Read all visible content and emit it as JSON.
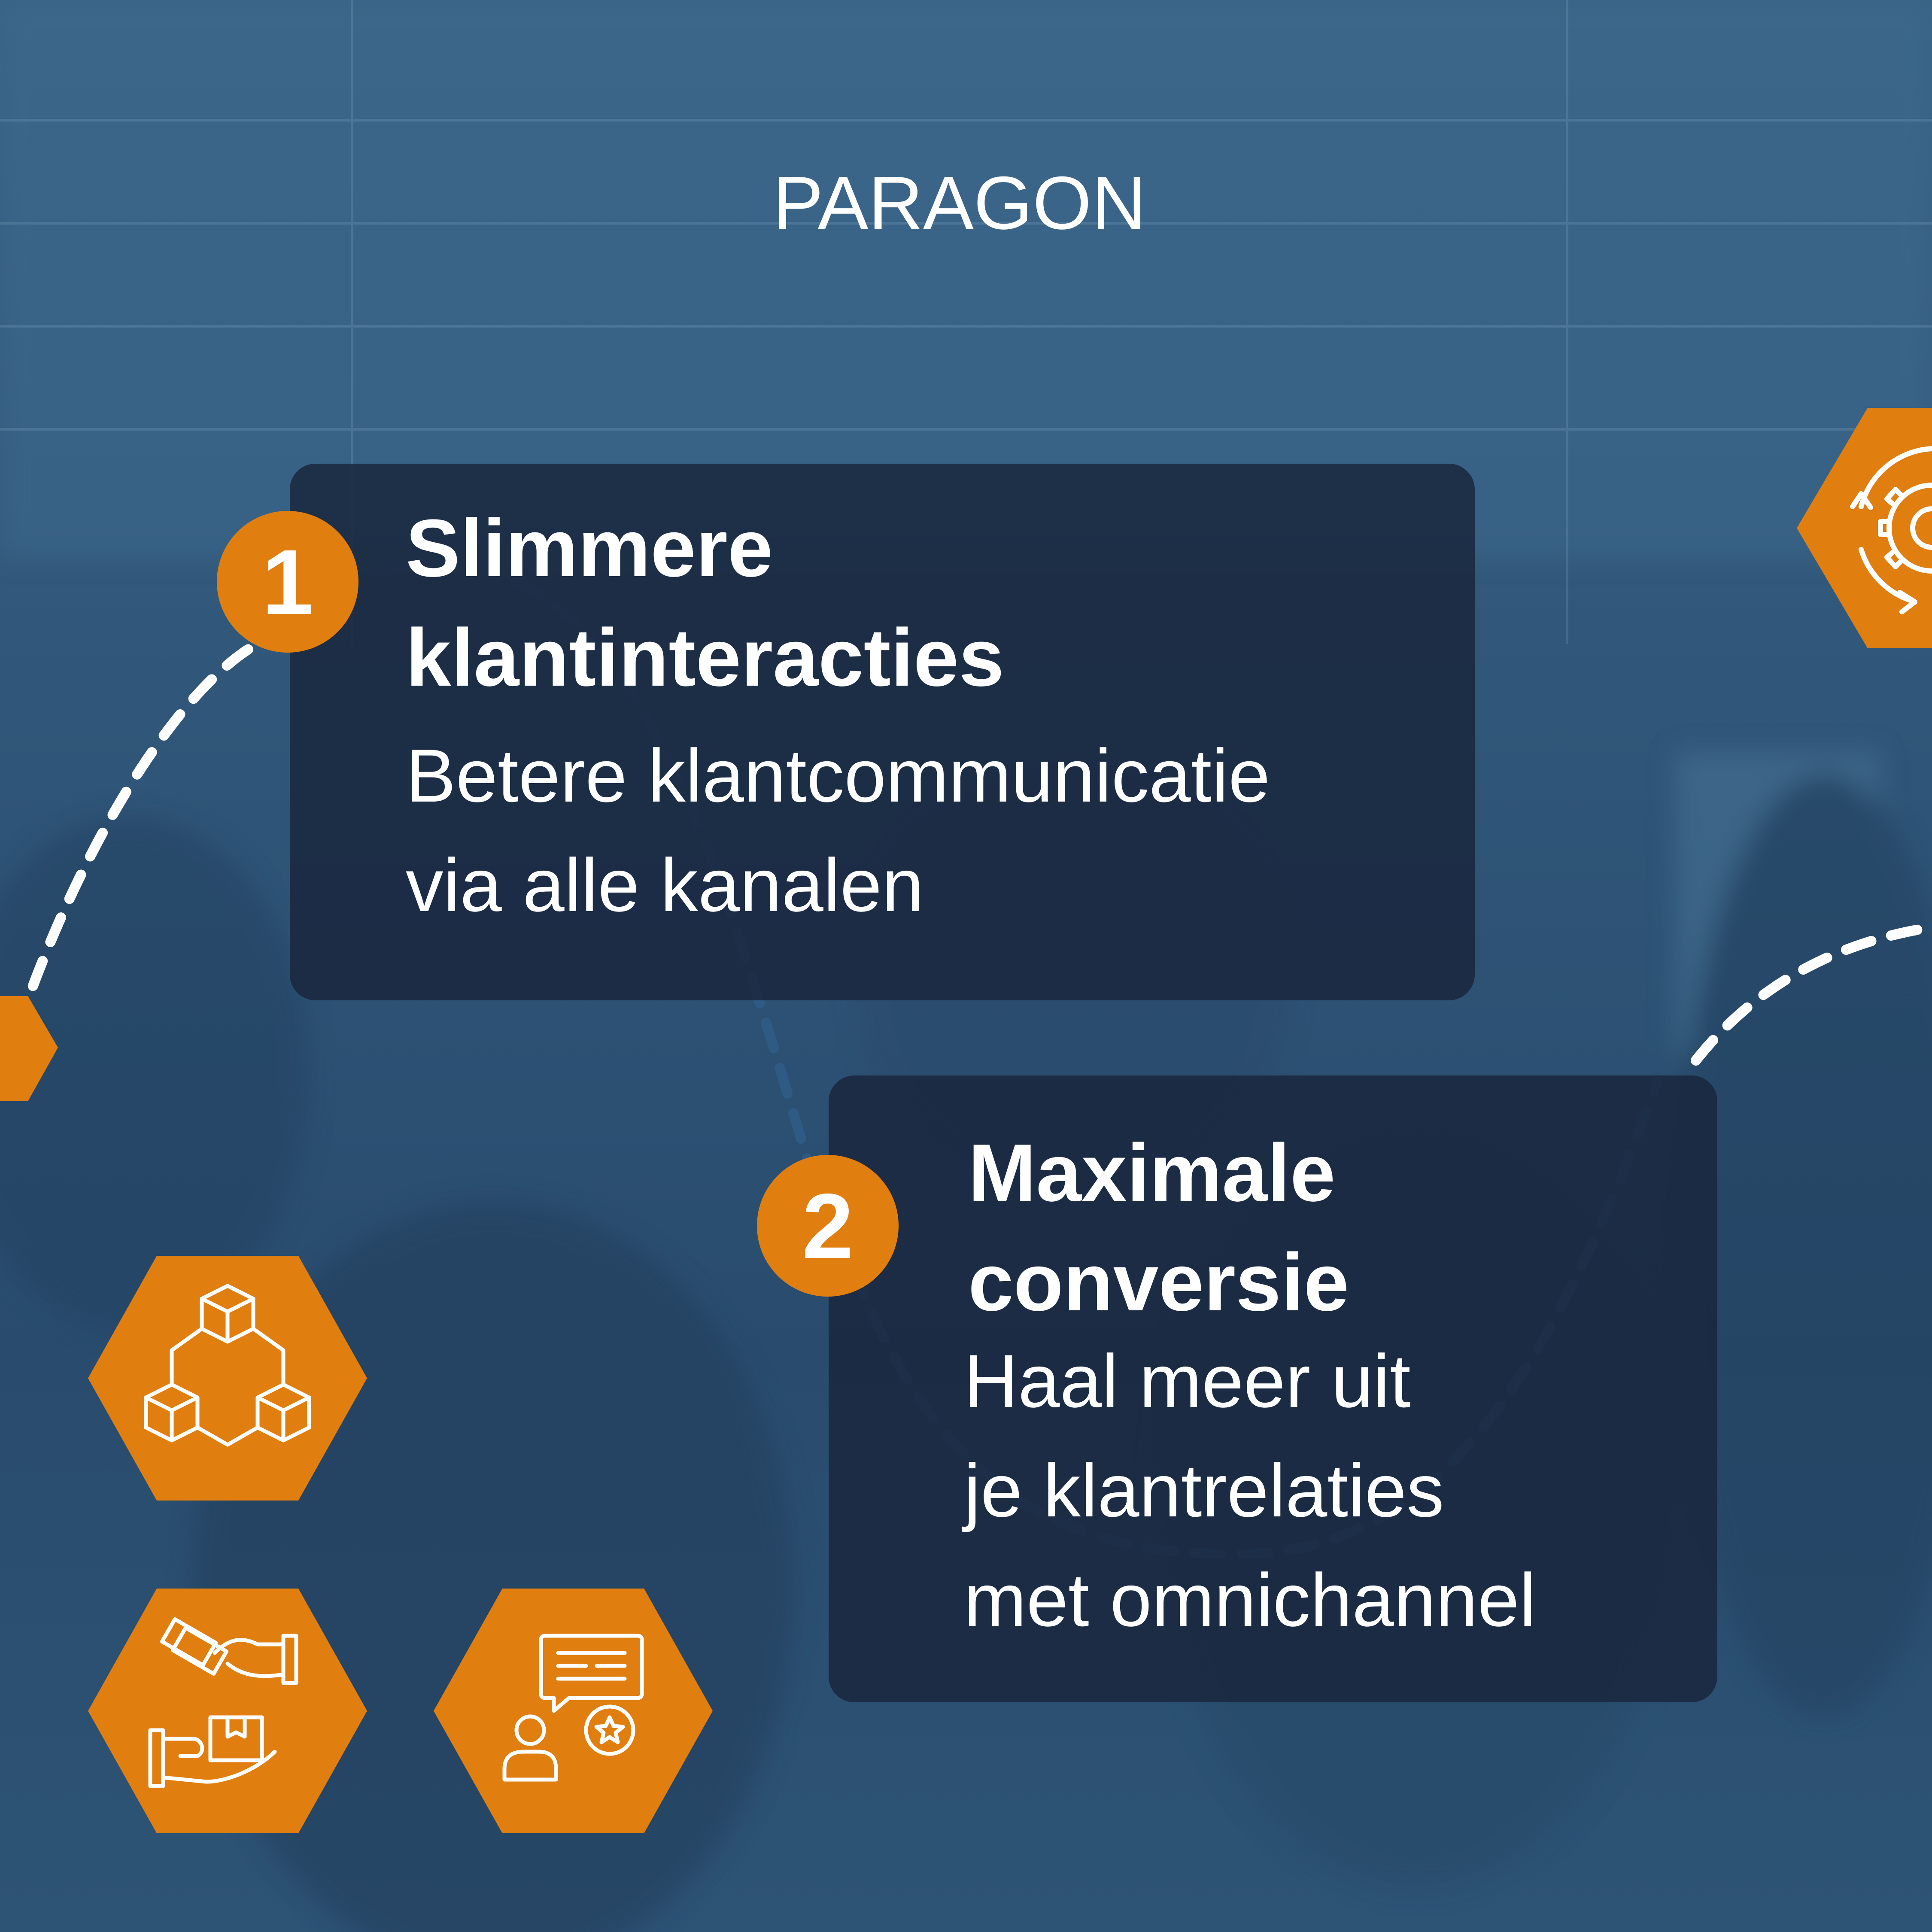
{
  "brand": {
    "logo_text": "PARAGON"
  },
  "colors": {
    "accent": "#e07e10",
    "background": "#2f5578",
    "card": "#1a263e",
    "text": "#ffffff"
  },
  "cards": [
    {
      "number": "1",
      "title_line1": "Slimmere",
      "title_line2": "klantinteracties",
      "body_line1": "Betere klantcommunicatie",
      "body_line2": "via alle kanalen"
    },
    {
      "number": "2",
      "title_line1": "Maximale",
      "title_line2": "conversie",
      "body_line1": "Haal meer uit",
      "body_line2": "je klantrelaties",
      "body_line3": "met omnichannel"
    }
  ],
  "icons": [
    "boxes-network-icon",
    "payment-delivery-icon",
    "customer-review-icon",
    "gear-cycle-icon"
  ]
}
